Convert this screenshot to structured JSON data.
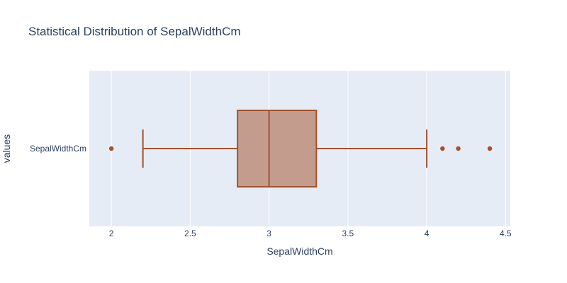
{
  "chart_data": {
    "type": "box",
    "title": "Statistical Distribution of SepalWidthCm",
    "xlabel": "SepalWidthCm",
    "ylabel": "values",
    "orientation": "horizontal",
    "categories": [
      "SepalWidthCm"
    ],
    "xlim": [
      1.86,
      4.53
    ],
    "xticks": [
      2,
      2.5,
      3,
      3.5,
      4,
      4.5
    ],
    "xtick_labels": [
      "2",
      "2.5",
      "3",
      "3.5",
      "4",
      "4.5"
    ],
    "grid": true,
    "series": [
      {
        "name": "SepalWidthCm",
        "min": 2.2,
        "q1": 2.8,
        "median": 3.0,
        "q3": 3.3,
        "max": 4.0,
        "outliers": [
          2.0,
          4.1,
          4.2,
          4.4
        ]
      }
    ],
    "colors": {
      "line": "#a0522d",
      "fill": "#c49c8e",
      "plot_bg": "#e5ecf6",
      "grid": "#ffffff",
      "text": "#2a3f5f"
    }
  }
}
